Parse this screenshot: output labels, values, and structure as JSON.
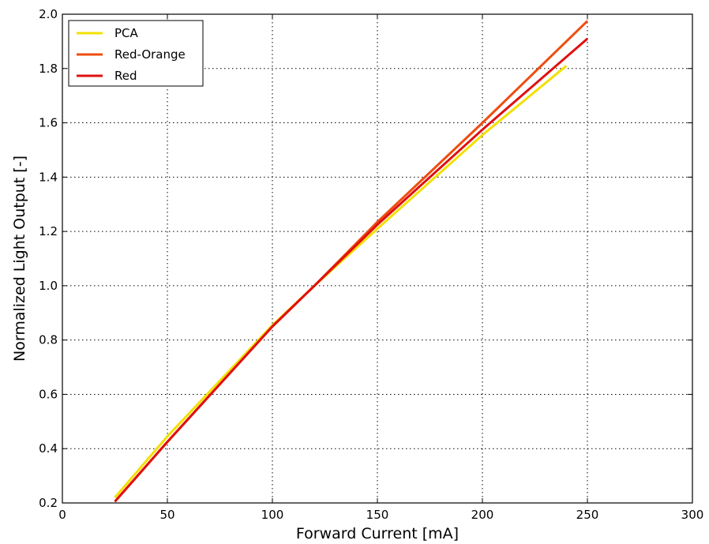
{
  "chart_data": {
    "type": "line",
    "title": "",
    "xlabel": "Forward Current [mA]",
    "ylabel": "Normalized Light Output [-]",
    "xlim": [
      0,
      300
    ],
    "ylim": [
      0.2,
      2.0
    ],
    "xticks": [
      0,
      50,
      100,
      150,
      200,
      250,
      300
    ],
    "yticks": [
      0.2,
      0.4,
      0.6,
      0.8,
      1.0,
      1.2,
      1.4,
      1.6,
      1.8,
      2.0
    ],
    "xtick_labels": [
      "0",
      "50",
      "100",
      "150",
      "200",
      "250",
      "300"
    ],
    "ytick_labels": [
      "0.2",
      "0.4",
      "0.6",
      "0.8",
      "1.0",
      "1.2",
      "1.4",
      "1.6",
      "1.8",
      "2.0"
    ],
    "grid": true,
    "legend_position": "top-left",
    "series": [
      {
        "name": "PCA",
        "color": "#f2e000",
        "x": [
          25,
          50,
          100,
          120,
          150,
          200,
          240
        ],
        "y": [
          0.22,
          0.445,
          0.855,
          1.0,
          1.21,
          1.555,
          1.81
        ]
      },
      {
        "name": "Red-Orange",
        "color": "#ee4d10",
        "x": [
          25,
          50,
          100,
          120,
          150,
          200,
          250
        ],
        "y": [
          0.205,
          0.425,
          0.85,
          1.0,
          1.235,
          1.6,
          1.975
        ]
      },
      {
        "name": "Red",
        "color": "#e01010",
        "x": [
          25,
          50,
          100,
          120,
          150,
          200,
          250
        ],
        "y": [
          0.205,
          0.425,
          0.85,
          1.0,
          1.225,
          1.575,
          1.91
        ]
      }
    ]
  }
}
